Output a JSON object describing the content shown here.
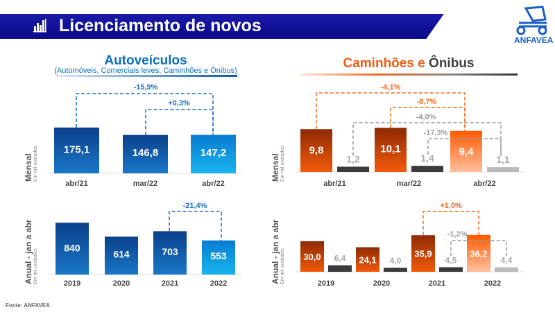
{
  "header": {
    "title": "Licenciamento de novos",
    "icon": "bar-chart-icon",
    "logo_text": "ANFAVEA"
  },
  "left": {
    "title": "Autoveículos",
    "subtitle": "(Automóveis, Comerciais leves, Caminhões e Ônibus)"
  },
  "right": {
    "title_a": "Caminhões e",
    "title_b": "Ônibus"
  },
  "axis": {
    "monthly": "Mensal",
    "annual": "Anual - jan a abr",
    "unit": "Em mil unidades"
  },
  "source": "Fonte: ANFAVEA",
  "colors": {
    "blue_dark": "#0a4a9a",
    "blue_light": "#12a0e0",
    "orange_dark": "#9a2e05",
    "orange": "#ff6a10",
    "gray_dark": "#3a3a3a",
    "gray_light": "#bbbbbb",
    "title_bar": "#10109a"
  },
  "chart_data": [
    {
      "type": "bar",
      "id": "auto-monthly",
      "categories": [
        "abr/21",
        "mar/22",
        "abr/22"
      ],
      "values": [
        175.1,
        146.8,
        147.2
      ],
      "labels": [
        "175,1",
        "146,8",
        "147,2"
      ],
      "annotations": [
        {
          "text": "-15,9%",
          "from": "abr/21",
          "to": "abr/22"
        },
        {
          "text": "+0,3%",
          "from": "mar/22",
          "to": "abr/22"
        }
      ]
    },
    {
      "type": "bar",
      "id": "auto-annual",
      "categories": [
        "2019",
        "2020",
        "2021",
        "2022"
      ],
      "values": [
        840,
        614,
        703,
        553
      ],
      "labels": [
        "840",
        "614",
        "703",
        "553"
      ],
      "annotations": [
        {
          "text": "-21,4%",
          "from": "2021",
          "to": "2022"
        }
      ]
    },
    {
      "type": "bar",
      "id": "truck-monthly",
      "categories": [
        "abr/21",
        "mar/22",
        "abr/22"
      ],
      "series": [
        {
          "values": [
            9.8,
            10.1,
            9.4
          ],
          "labels": [
            "9,8",
            "10,1",
            "9,4"
          ]
        },
        {
          "values": [
            1.2,
            1.4,
            1.1
          ],
          "labels": [
            "1,2",
            "1,4",
            "1,1"
          ]
        }
      ],
      "annotations": [
        {
          "text": "-4,1%",
          "from": "abr/21",
          "to": "abr/22"
        },
        {
          "text": "-6,7%",
          "from": "mar/22",
          "to": "abr/22"
        },
        {
          "text": "-4,0%",
          "from": "abr/21",
          "to": "abr/22"
        },
        {
          "text": "-17,3%",
          "from": "mar/22",
          "to": "abr/22"
        }
      ]
    },
    {
      "type": "bar",
      "id": "truck-annual",
      "categories": [
        "2019",
        "2020",
        "2021",
        "2022"
      ],
      "series": [
        {
          "values": [
            30.0,
            24.1,
            35.9,
            36.2
          ],
          "labels": [
            "30,0",
            "24,1",
            "35,9",
            "36,2"
          ]
        },
        {
          "values": [
            6.4,
            4.0,
            4.5,
            4.4
          ],
          "labels": [
            "6,4",
            "4,0",
            "4,5",
            "4,4"
          ]
        }
      ],
      "annotations": [
        {
          "text": "+1,0%",
          "from": "2021",
          "to": "2022"
        },
        {
          "text": "-1,2%",
          "from": "2021",
          "to": "2022"
        }
      ]
    }
  ]
}
